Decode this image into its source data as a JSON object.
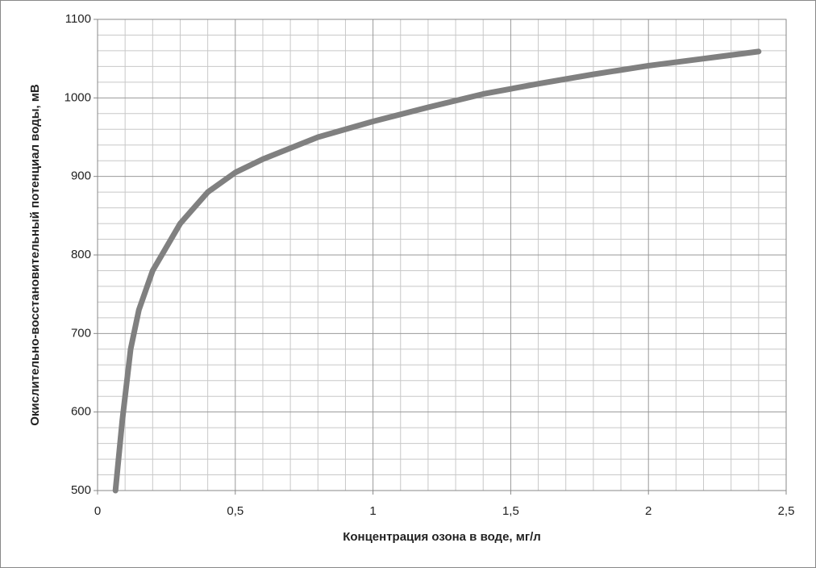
{
  "chart_data": {
    "type": "line",
    "x_label": "Концентрация озона в воде, мг/л",
    "y_label": "Окислительно-восстановительный потенциал воды, мВ",
    "x": [
      0.065,
      0.09,
      0.12,
      0.15,
      0.2,
      0.3,
      0.4,
      0.5,
      0.6,
      0.8,
      1.0,
      1.2,
      1.4,
      1.6,
      1.8,
      2.0,
      2.2,
      2.4
    ],
    "series": [
      {
        "color": "#808080",
        "values": [
          500,
          590,
          680,
          730,
          780,
          840,
          880,
          905,
          922,
          950,
          970,
          988,
          1005,
          1018,
          1030,
          1041,
          1050,
          1059
        ]
      }
    ],
    "xlim": [
      0,
      2.5
    ],
    "xticks": [
      0,
      {
        "value": 0.5,
        "label": "0,5"
      },
      1,
      {
        "value": 1.5,
        "label": "1,5"
      },
      2,
      {
        "value": 2.5,
        "label": "2,5"
      }
    ],
    "ylim": [
      500,
      1100
    ],
    "yticks": [
      500,
      600,
      700,
      800,
      900,
      1000,
      1100
    ],
    "grid": true
  }
}
